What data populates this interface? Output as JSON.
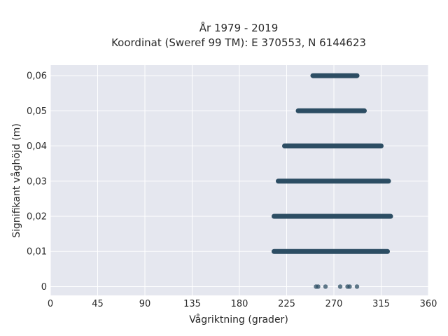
{
  "chart_data": {
    "type": "scatter",
    "title_line1": "År 1979 - 2019",
    "title_line2": "Koordinat (Sweref 99 TM): E 370553, N 6144623",
    "xlabel": "Vågriktning (grader)",
    "ylabel": "Signifikant våghöjd (m)",
    "xlim": [
      0,
      360
    ],
    "ylim": [
      -0.0025,
      0.063
    ],
    "x_ticks": [
      0,
      45,
      90,
      135,
      180,
      225,
      270,
      315,
      360
    ],
    "x_tick_labels": [
      "0",
      "45",
      "90",
      "135",
      "180",
      "225",
      "270",
      "315",
      "360"
    ],
    "y_ticks": [
      0,
      0.01,
      0.02,
      0.03,
      0.04,
      0.05,
      0.06
    ],
    "y_tick_labels": [
      "0",
      "0,01",
      "0,02",
      "0,03",
      "0,04",
      "0,05",
      "0,06"
    ],
    "grid": true,
    "colors": {
      "background": "#e5e7ef",
      "grid": "#ffffff",
      "marker": "#2c4d63",
      "text": "#2a2a2a"
    },
    "bands": [
      {
        "y": 0.06,
        "x_min": 250,
        "x_max": 292
      },
      {
        "y": 0.05,
        "x_min": 236,
        "x_max": 299
      },
      {
        "y": 0.04,
        "x_min": 223,
        "x_max": 315
      },
      {
        "y": 0.03,
        "x_min": 217,
        "x_max": 322
      },
      {
        "y": 0.02,
        "x_min": 213,
        "x_max": 324
      },
      {
        "y": 0.01,
        "x_min": 213,
        "x_max": 321
      }
    ],
    "points": [
      {
        "x": 253,
        "y": 0
      },
      {
        "x": 255,
        "y": 0
      },
      {
        "x": 262,
        "y": 0
      },
      {
        "x": 276,
        "y": 0
      },
      {
        "x": 283,
        "y": 0
      },
      {
        "x": 285,
        "y": 0
      },
      {
        "x": 292,
        "y": 0
      }
    ]
  }
}
